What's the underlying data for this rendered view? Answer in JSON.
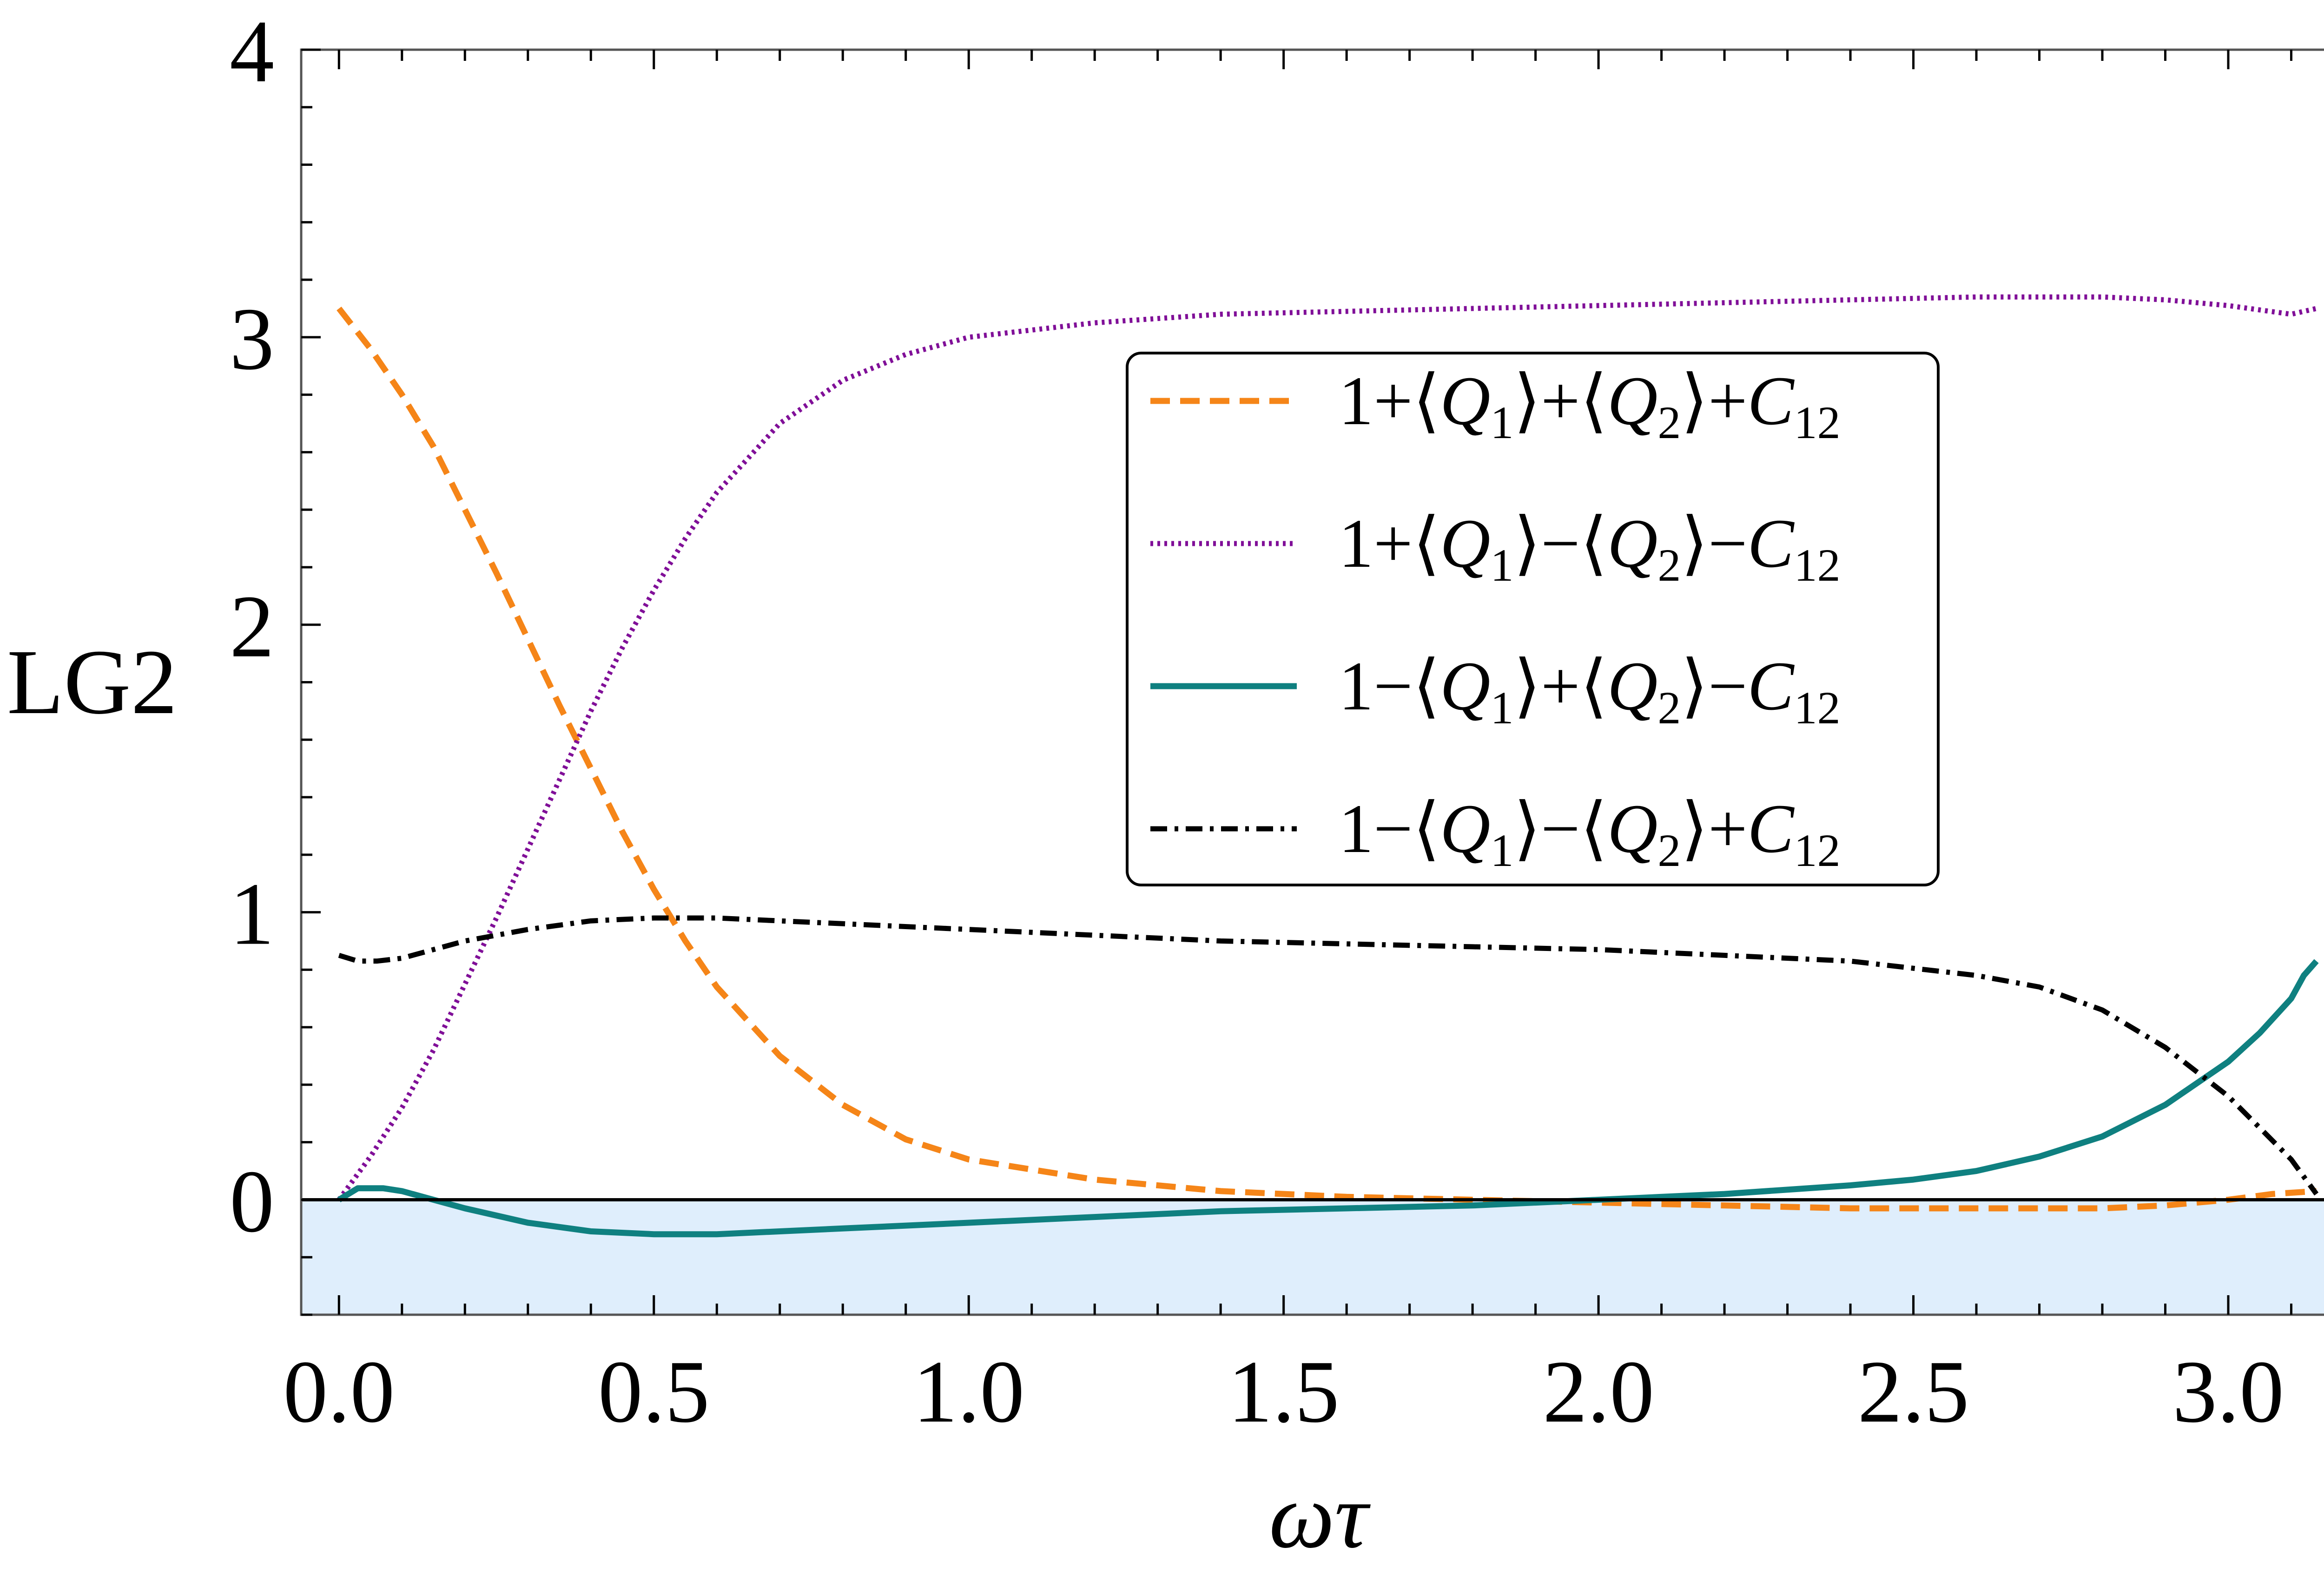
{
  "chart_data": {
    "type": "line",
    "title": "",
    "xlabel": "ωτ",
    "ylabel": "LG2",
    "xlim": [
      -0.06,
      3.2
    ],
    "ylim": [
      -0.4,
      4
    ],
    "x_ticks": [
      0.0,
      0.5,
      1.0,
      1.5,
      2.0,
      2.5,
      3.0
    ],
    "x_tick_labels": [
      "0.0",
      "0.5",
      "1.0",
      "1.5",
      "2.0",
      "2.5",
      "3.0"
    ],
    "y_ticks": [
      0,
      1,
      2,
      3,
      4
    ],
    "y_tick_labels": [
      "0",
      "1",
      "2",
      "3",
      "4"
    ],
    "reference_line_y": 0,
    "shaded_region": {
      "y_from": -0.4,
      "y_to": 0,
      "color": "#dfeefc"
    },
    "legend_position": "upper-right",
    "grid": false,
    "series": [
      {
        "name": "1+⟨Q1⟩+⟨Q2⟩+C12",
        "legend_parts": [
          [
            "1+⟨",
            "n"
          ],
          [
            "Q",
            "i"
          ],
          [
            "1",
            "s"
          ],
          [
            "⟩+⟨",
            "n"
          ],
          [
            "Q",
            "i"
          ],
          [
            "2",
            "s"
          ],
          [
            "⟩+",
            "n"
          ],
          [
            "C",
            "i"
          ],
          [
            "12",
            "s"
          ]
        ],
        "color": "#f58518",
        "style": "dashed",
        "x": [
          0.0,
          0.05,
          0.1,
          0.15,
          0.2,
          0.25,
          0.3,
          0.35,
          0.4,
          0.45,
          0.5,
          0.55,
          0.6,
          0.7,
          0.8,
          0.9,
          1.0,
          1.2,
          1.4,
          1.6,
          1.8,
          2.0,
          2.2,
          2.4,
          2.6,
          2.8,
          2.9,
          3.0,
          3.07,
          3.14
        ],
        "y": [
          3.1,
          2.96,
          2.8,
          2.62,
          2.4,
          2.18,
          1.95,
          1.72,
          1.5,
          1.28,
          1.08,
          0.9,
          0.74,
          0.5,
          0.33,
          0.21,
          0.14,
          0.07,
          0.03,
          0.01,
          0.0,
          -0.01,
          -0.02,
          -0.03,
          -0.03,
          -0.03,
          -0.02,
          0.0,
          0.02,
          0.03
        ]
      },
      {
        "name": "1+⟨Q1⟩−⟨Q2⟩−C12",
        "legend_parts": [
          [
            "1+⟨",
            "n"
          ],
          [
            "Q",
            "i"
          ],
          [
            "1",
            "s"
          ],
          [
            "⟩−⟨",
            "n"
          ],
          [
            "Q",
            "i"
          ],
          [
            "2",
            "s"
          ],
          [
            "⟩−",
            "n"
          ],
          [
            "C",
            "i"
          ],
          [
            "12",
            "s"
          ]
        ],
        "color": "#800f98",
        "style": "dotted",
        "x": [
          0.0,
          0.05,
          0.1,
          0.15,
          0.2,
          0.25,
          0.3,
          0.35,
          0.4,
          0.45,
          0.5,
          0.55,
          0.6,
          0.7,
          0.8,
          0.9,
          1.0,
          1.2,
          1.4,
          1.6,
          1.8,
          2.0,
          2.2,
          2.4,
          2.6,
          2.8,
          2.9,
          3.0,
          3.1,
          3.14
        ],
        "y": [
          0.0,
          0.15,
          0.32,
          0.52,
          0.75,
          0.98,
          1.22,
          1.46,
          1.7,
          1.92,
          2.12,
          2.3,
          2.46,
          2.7,
          2.85,
          2.94,
          3.0,
          3.05,
          3.08,
          3.09,
          3.1,
          3.11,
          3.12,
          3.13,
          3.14,
          3.14,
          3.13,
          3.11,
          3.08,
          3.1
        ]
      },
      {
        "name": "1−⟨Q1⟩+⟨Q2⟩−C12",
        "legend_parts": [
          [
            "1−⟨",
            "n"
          ],
          [
            "Q",
            "i"
          ],
          [
            "1",
            "s"
          ],
          [
            "⟩+⟨",
            "n"
          ],
          [
            "Q",
            "i"
          ],
          [
            "2",
            "s"
          ],
          [
            "⟩−",
            "n"
          ],
          [
            "C",
            "i"
          ],
          [
            "12",
            "s"
          ]
        ],
        "color": "#0f8080",
        "style": "solid",
        "x": [
          0.0,
          0.03,
          0.07,
          0.1,
          0.15,
          0.2,
          0.3,
          0.4,
          0.5,
          0.55,
          0.6,
          0.8,
          1.0,
          1.2,
          1.4,
          1.6,
          1.8,
          2.0,
          2.2,
          2.4,
          2.5,
          2.6,
          2.7,
          2.8,
          2.9,
          3.0,
          3.05,
          3.1,
          3.12,
          3.14
        ],
        "y": [
          0.0,
          0.04,
          0.04,
          0.03,
          0.0,
          -0.03,
          -0.08,
          -0.11,
          -0.12,
          -0.12,
          -0.12,
          -0.1,
          -0.08,
          -0.06,
          -0.04,
          -0.03,
          -0.02,
          0.0,
          0.02,
          0.05,
          0.07,
          0.1,
          0.15,
          0.22,
          0.33,
          0.48,
          0.58,
          0.7,
          0.78,
          0.83
        ]
      },
      {
        "name": "1−⟨Q1⟩−⟨Q2⟩+C12",
        "legend_parts": [
          [
            "1−⟨",
            "n"
          ],
          [
            "Q",
            "i"
          ],
          [
            "1",
            "s"
          ],
          [
            "⟩−⟨",
            "n"
          ],
          [
            "Q",
            "i"
          ],
          [
            "2",
            "s"
          ],
          [
            "⟩+",
            "n"
          ],
          [
            "C",
            "i"
          ],
          [
            "12",
            "s"
          ]
        ],
        "color": "#000000",
        "style": "dashdot",
        "x": [
          0.0,
          0.03,
          0.06,
          0.1,
          0.15,
          0.2,
          0.3,
          0.4,
          0.5,
          0.55,
          0.6,
          0.7,
          0.8,
          1.0,
          1.2,
          1.4,
          1.6,
          1.8,
          2.0,
          2.2,
          2.4,
          2.6,
          2.7,
          2.8,
          2.9,
          3.0,
          3.05,
          3.1,
          3.14
        ],
        "y": [
          0.85,
          0.83,
          0.83,
          0.84,
          0.87,
          0.9,
          0.94,
          0.97,
          0.98,
          0.98,
          0.98,
          0.97,
          0.96,
          0.94,
          0.92,
          0.9,
          0.89,
          0.88,
          0.87,
          0.85,
          0.83,
          0.78,
          0.74,
          0.66,
          0.53,
          0.36,
          0.25,
          0.14,
          0.02
        ]
      }
    ]
  }
}
